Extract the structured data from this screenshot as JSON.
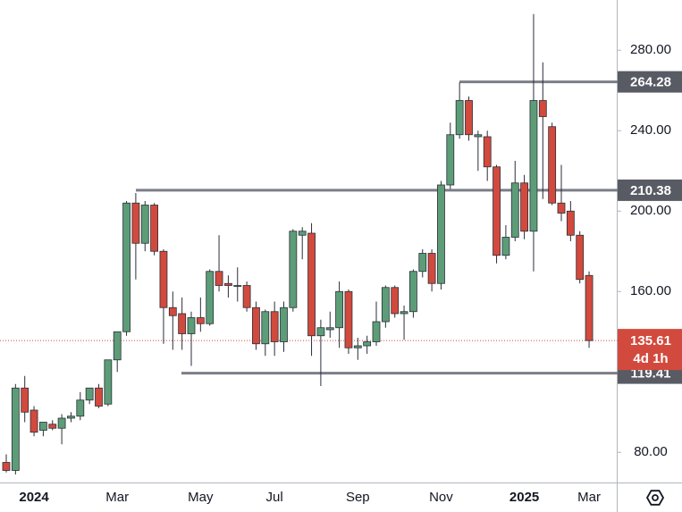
{
  "chart_data": {
    "type": "candlestick",
    "categories": [
      null,
      null,
      null,
      "2024",
      null,
      null,
      null,
      null,
      null,
      null,
      null,
      null,
      "Mar",
      null,
      null,
      null,
      null,
      null,
      null,
      null,
      null,
      "May",
      null,
      null,
      null,
      null,
      null,
      null,
      null,
      "Jul",
      null,
      null,
      null,
      null,
      null,
      null,
      null,
      null,
      "Sep",
      null,
      null,
      null,
      null,
      null,
      null,
      null,
      null,
      "Nov",
      null,
      null,
      null,
      null,
      null,
      null,
      null,
      null,
      "2025",
      null,
      null,
      null,
      null,
      null,
      null,
      "Mar"
    ],
    "open": [
      75,
      71,
      112,
      101,
      91,
      94,
      92,
      97,
      98,
      106,
      112,
      104,
      126,
      140,
      204,
      184,
      203,
      180,
      152,
      149,
      139,
      147,
      144,
      170,
      164,
      163,
      163,
      152,
      134,
      150,
      135,
      152,
      188,
      189,
      138,
      141,
      142,
      160,
      132,
      133,
      135,
      145,
      162,
      149,
      150,
      170,
      179,
      164,
      213,
      238,
      255,
      237,
      237,
      222,
      178,
      187,
      214,
      190,
      255,
      242,
      204,
      200,
      188,
      168
    ],
    "high": [
      79,
      114,
      118,
      103,
      95,
      96,
      99,
      100,
      110,
      112,
      114,
      126,
      140,
      205,
      209,
      205,
      204,
      181,
      160,
      157,
      150,
      157,
      171,
      188,
      168,
      172,
      165,
      155,
      151,
      155,
      155,
      191,
      192,
      194,
      146,
      150,
      165,
      161,
      137,
      138,
      155,
      163,
      163,
      153,
      171,
      181,
      181,
      215,
      244,
      264,
      257,
      240,
      240,
      223,
      193,
      225,
      218,
      298,
      274,
      244,
      223,
      205,
      190,
      170
    ],
    "low": [
      70,
      69,
      95,
      88,
      88,
      91,
      84,
      95,
      96,
      104,
      102,
      103,
      120,
      138,
      166,
      180,
      178,
      134,
      131,
      131,
      123,
      140,
      143,
      160,
      157,
      155,
      150,
      131,
      128,
      128,
      130,
      150,
      176,
      128,
      113,
      137,
      132,
      129,
      126,
      129,
      133,
      142,
      147,
      136,
      147,
      167,
      160,
      161,
      211,
      236,
      235,
      220,
      215,
      174,
      176,
      185,
      186,
      170,
      206,
      203,
      195,
      185,
      164,
      132
    ],
    "close": [
      71,
      112,
      100,
      90,
      95,
      92,
      97,
      98,
      106,
      112,
      103,
      126,
      140,
      204,
      184,
      203,
      180,
      152,
      148,
      139,
      147,
      144,
      170,
      163,
      163,
      163,
      152,
      134,
      150,
      135,
      152,
      190,
      190,
      138,
      142,
      142,
      160,
      132,
      133,
      135,
      145,
      162,
      149,
      150,
      170,
      179,
      164,
      213,
      238,
      255,
      238,
      238,
      222,
      178,
      187,
      214,
      190,
      255,
      247,
      204,
      199,
      188,
      166,
      135.61
    ],
    "up_color": "#5c9d78",
    "down_color": "#d24a3d",
    "ylim": [
      65,
      305
    ],
    "yticks": [
      {
        "value": 80,
        "label": "80.00"
      },
      {
        "value": 160,
        "label": "160.00"
      },
      {
        "value": 200,
        "label": "200.00"
      },
      {
        "value": 240,
        "label": "240.00"
      },
      {
        "value": 280,
        "label": "280.00"
      }
    ],
    "levels": [
      264.28,
      210.38,
      119.41
    ],
    "level_color": "#7b7e87",
    "countdown": "4d 1h"
  }
}
